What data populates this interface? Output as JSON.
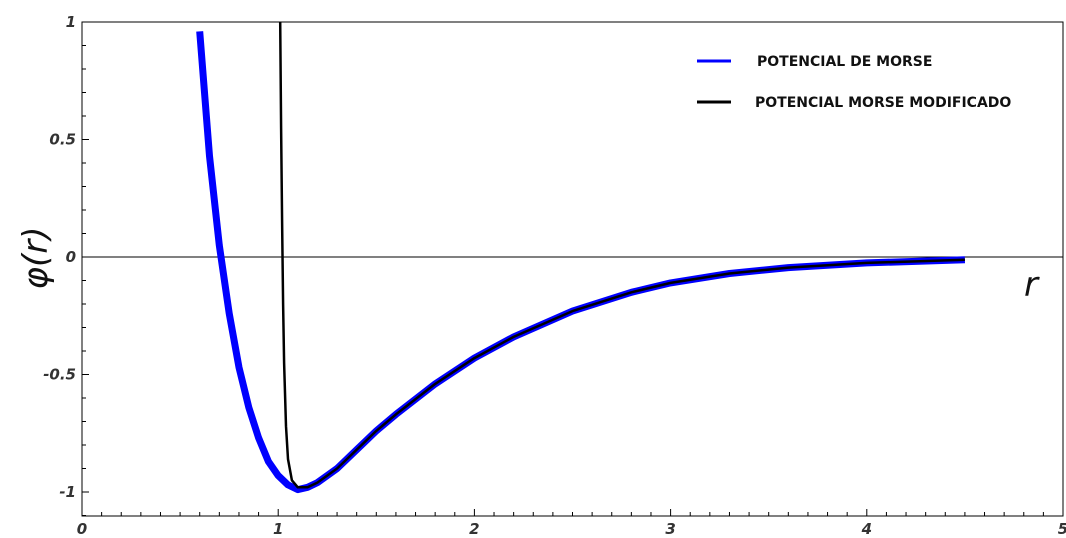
{
  "chart_data": {
    "type": "line",
    "xlabel": "r",
    "ylabel": "φ(r)",
    "xlim": [
      0,
      5
    ],
    "ylim": [
      -1.1,
      1.0
    ],
    "x_ticks": [
      0,
      1,
      2,
      3,
      4,
      5
    ],
    "x_tick_labels": [
      "0",
      "1",
      "2",
      "3",
      "4",
      "5"
    ],
    "y_ticks": [
      1,
      0.5,
      0,
      -0.5,
      -1
    ],
    "y_tick_labels": [
      "1",
      "0.5",
      "0",
      "-0.5",
      "-1"
    ],
    "grid": false,
    "legend_position": "top-right",
    "series": [
      {
        "name": "POTENCIAL DE MORSE",
        "color": "#0000ff",
        "x": [
          0.6,
          0.65,
          0.7,
          0.75,
          0.8,
          0.85,
          0.9,
          0.95,
          1.0,
          1.05,
          1.1,
          1.15,
          1.2,
          1.3,
          1.4,
          1.5,
          1.6,
          1.8,
          2.0,
          2.2,
          2.5,
          2.8,
          3.0,
          3.3,
          3.6,
          4.0,
          4.5
        ],
        "y": [
          0.96,
          0.43,
          0.05,
          -0.24,
          -0.47,
          -0.64,
          -0.77,
          -0.87,
          -0.93,
          -0.97,
          -0.99,
          -0.98,
          -0.96,
          -0.9,
          -0.82,
          -0.74,
          -0.67,
          -0.54,
          -0.43,
          -0.34,
          -0.23,
          -0.15,
          -0.11,
          -0.07,
          -0.045,
          -0.025,
          -0.012
        ]
      },
      {
        "name": "POTENCIAL MORSE MODIFICADO",
        "color": "#000000",
        "x": [
          1.01,
          1.015,
          1.02,
          1.025,
          1.03,
          1.04,
          1.05,
          1.07,
          1.1,
          1.15,
          1.2,
          1.3,
          1.4,
          1.5,
          1.6,
          1.8,
          2.0,
          2.2,
          2.5,
          2.8,
          3.0,
          3.3,
          3.6,
          4.0,
          4.5
        ],
        "y": [
          1.0,
          0.55,
          0.15,
          -0.2,
          -0.45,
          -0.72,
          -0.86,
          -0.95,
          -0.98,
          -0.98,
          -0.96,
          -0.9,
          -0.82,
          -0.74,
          -0.67,
          -0.54,
          -0.43,
          -0.34,
          -0.23,
          -0.15,
          -0.11,
          -0.07,
          -0.045,
          -0.025,
          -0.012
        ]
      }
    ]
  }
}
